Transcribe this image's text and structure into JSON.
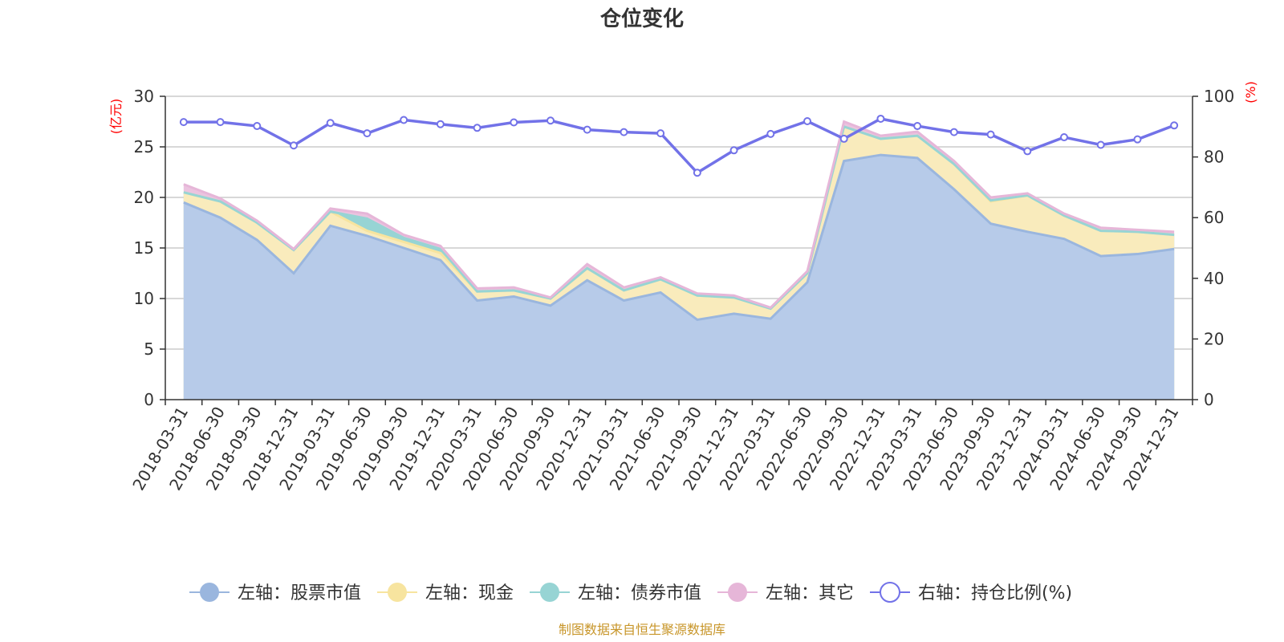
{
  "chart_data": {
    "type": "area",
    "title": "仓位变化",
    "footer": "制图数据来自恒生聚源数据库",
    "left_axis": {
      "unit": "(亿元)",
      "ylim": [
        0,
        30
      ],
      "ticks": [
        "0",
        "5",
        "10",
        "15",
        "20",
        "25",
        "30"
      ]
    },
    "right_axis": {
      "unit": "(%)",
      "ylim": [
        0,
        100
      ],
      "ticks": [
        "0",
        "20",
        "40",
        "60",
        "80",
        "100"
      ]
    },
    "categories": [
      "2018-03-31",
      "2018-06-30",
      "2018-09-30",
      "2018-12-31",
      "2019-03-31",
      "2019-06-30",
      "2019-09-30",
      "2019-12-31",
      "2020-03-31",
      "2020-06-30",
      "2020-09-30",
      "2020-12-31",
      "2021-03-31",
      "2021-06-30",
      "2021-09-30",
      "2021-12-31",
      "2022-03-31",
      "2022-06-30",
      "2022-09-30",
      "2022-12-31",
      "2023-03-31",
      "2023-06-30",
      "2023-09-30",
      "2023-12-31",
      "2024-03-31",
      "2024-06-30",
      "2024-09-30",
      "2024-12-31"
    ],
    "series": [
      {
        "name": "左轴：股票市值",
        "axis": "left",
        "color": "#9ab6de",
        "fill": "#b7cbe9",
        "values": [
          19.5,
          18.0,
          15.8,
          12.5,
          17.2,
          16.2,
          15.0,
          13.8,
          9.8,
          10.2,
          9.3,
          11.8,
          9.8,
          10.6,
          7.9,
          8.5,
          8.0,
          11.6,
          23.6,
          24.2,
          23.9,
          20.8,
          17.4,
          16.6,
          15.9,
          14.2,
          14.4,
          14.9
        ]
      },
      {
        "name": "左轴：现金",
        "axis": "left",
        "color": "#f7e49f",
        "fill": "#f9ebbc",
        "values": [
          1.0,
          1.6,
          1.7,
          2.3,
          1.4,
          0.5,
          0.6,
          0.7,
          0.9,
          0.6,
          0.7,
          1.2,
          1.0,
          1.3,
          2.4,
          1.6,
          1.0,
          0.9,
          3.4,
          1.6,
          2.2,
          2.5,
          2.2,
          3.6,
          2.3,
          2.5,
          2.2,
          1.4
        ]
      },
      {
        "name": "左轴：债券市值",
        "axis": "left",
        "color": "#97d4d4",
        "fill": "#97d4d4",
        "values": [
          0,
          0,
          0,
          0,
          0,
          1.2,
          0.4,
          0.4,
          0,
          0,
          0,
          0,
          0,
          0,
          0,
          0,
          0,
          0,
          0,
          0,
          0,
          0,
          0.1,
          0,
          0,
          0,
          0,
          0
        ]
      },
      {
        "name": "左轴：其它",
        "axis": "left",
        "color": "#e6b6d8",
        "fill": "#ebc3df",
        "values": [
          0.8,
          0.3,
          0.2,
          0.1,
          0.3,
          0.5,
          0.3,
          0.3,
          0.3,
          0.3,
          0.1,
          0.4,
          0.3,
          0.2,
          0.2,
          0.2,
          0.1,
          0.2,
          0.5,
          0.3,
          0.4,
          0.3,
          0.3,
          0.2,
          0.2,
          0.3,
          0.2,
          0.3
        ]
      },
      {
        "name": "右轴：持仓比例(%)",
        "axis": "right",
        "color": "#7272e8",
        "values": [
          91.5,
          91.5,
          90.2,
          83.8,
          91.2,
          87.8,
          92.2,
          90.8,
          89.6,
          91.4,
          92.0,
          89.0,
          88.2,
          87.8,
          74.8,
          82.2,
          87.6,
          91.8,
          86.0,
          92.6,
          90.2,
          88.2,
          87.4,
          81.9,
          86.5,
          84.0,
          85.8,
          90.4
        ]
      }
    ],
    "legend_position": "bottom"
  }
}
